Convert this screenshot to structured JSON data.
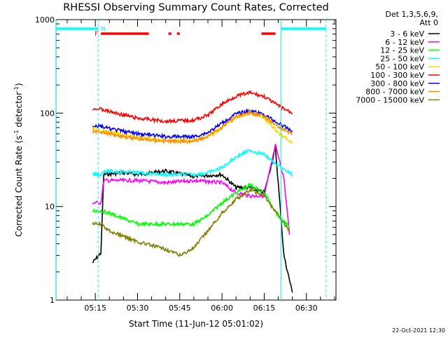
{
  "chart_data": {
    "type": "line",
    "title": "RHESSI Observing Summary Count Rates, Corrected",
    "xlabel": "Start Time (11-Jun-12 05:01:02)",
    "ylabel_main": "Corrected Count Rate (s",
    "ylabel_sup1": "-1",
    "ylabel_mid": " detector",
    "ylabel_sup2": "-1",
    "ylabel_end": ")",
    "y_scale": "log",
    "ylim": [
      1,
      1000
    ],
    "xlim": [
      "05:01:02",
      "06:40:30"
    ],
    "x_ticks": [
      "05:15",
      "05:30",
      "05:45",
      "06:00",
      "06:15",
      "06:30"
    ],
    "y_ticks": [
      "1",
      "10",
      "100",
      "1000"
    ],
    "grid": false,
    "legend_header": [
      "Det 1,3,5,6,9,",
      "Att 0"
    ],
    "legend_placement": "right",
    "series": [
      {
        "name": "3 - 6 keV",
        "color": "#000000",
        "x": [
          "05:14",
          "05:17",
          "05:18",
          "05:25",
          "05:30",
          "05:40",
          "05:50",
          "06:00",
          "06:05",
          "06:10",
          "06:15",
          "06:19",
          "06:22",
          "06:25"
        ],
        "values": [
          2.5,
          3.2,
          22,
          23,
          22,
          24,
          21,
          22,
          16,
          16,
          14,
          42,
          3,
          1.2
        ]
      },
      {
        "name": "6 - 12 keV",
        "color": "#ff00ff",
        "x": [
          "05:14",
          "05:17",
          "05:18",
          "05:30",
          "05:40",
          "05:50",
          "06:00",
          "06:05",
          "06:10",
          "06:15",
          "06:19",
          "06:22",
          "06:24"
        ],
        "values": [
          11,
          11,
          19,
          19,
          18,
          19,
          18,
          14,
          13,
          13,
          45,
          20,
          5
        ]
      },
      {
        "name": "12 - 25 keV",
        "color": "#00ff00",
        "x": [
          "05:14",
          "05:17",
          "05:20",
          "05:30",
          "05:40",
          "05:50",
          "05:55",
          "06:00",
          "06:05",
          "06:10",
          "06:15",
          "06:20",
          "06:24"
        ],
        "values": [
          9,
          9,
          8.5,
          6.5,
          6.5,
          6.5,
          8,
          11,
          14,
          17,
          14,
          8,
          6
        ]
      },
      {
        "name": "25 - 50 keV",
        "color": "#00ffff",
        "x": [
          "05:14",
          "05:17",
          "05:18",
          "05:30",
          "05:40",
          "05:50",
          "05:55",
          "06:00",
          "06:05",
          "06:10",
          "06:15",
          "06:20",
          "06:25"
        ],
        "values": [
          22,
          22,
          24,
          23,
          22,
          22,
          23,
          26,
          34,
          40,
          36,
          27,
          22
        ]
      },
      {
        "name": "50 - 100 keV",
        "color": "#ffd700",
        "x": [
          "05:14",
          "05:17",
          "05:20",
          "05:30",
          "05:40",
          "05:50",
          "05:55",
          "06:00",
          "06:05",
          "06:10",
          "06:15",
          "06:20",
          "06:25"
        ],
        "values": [
          68,
          66,
          62,
          55,
          51,
          51,
          56,
          70,
          90,
          100,
          88,
          62,
          48
        ]
      },
      {
        "name": "100 - 300 keV",
        "color": "#ff0000",
        "x": [
          "05:14",
          "05:17",
          "05:20",
          "05:30",
          "05:40",
          "05:50",
          "05:55",
          "06:00",
          "06:05",
          "06:10",
          "06:15",
          "06:20",
          "06:25"
        ],
        "values": [
          112,
          110,
          104,
          88,
          82,
          84,
          95,
          125,
          152,
          165,
          150,
          120,
          100
        ]
      },
      {
        "name": "300 - 800 keV",
        "color": "#0000ff",
        "x": [
          "05:14",
          "05:17",
          "05:20",
          "05:30",
          "05:40",
          "05:50",
          "05:55",
          "06:00",
          "06:05",
          "06:10",
          "06:15",
          "06:20",
          "06:25"
        ],
        "values": [
          74,
          72,
          68,
          60,
          56,
          56,
          62,
          78,
          98,
          106,
          96,
          78,
          64
        ]
      },
      {
        "name": "800 - 7000 keV",
        "color": "#ff8c00",
        "x": [
          "05:14",
          "05:17",
          "05:20",
          "05:30",
          "05:40",
          "05:50",
          "05:55",
          "06:00",
          "06:05",
          "06:10",
          "06:15",
          "06:20",
          "06:25"
        ],
        "values": [
          64,
          63,
          60,
          53,
          50,
          50,
          56,
          71,
          92,
          102,
          92,
          72,
          60
        ]
      },
      {
        "name": "7000 - 15000 keV",
        "color": "#808000",
        "x": [
          "05:14",
          "05:17",
          "05:20",
          "05:30",
          "05:40",
          "05:45",
          "05:50",
          "05:55",
          "06:00",
          "06:05",
          "06:10",
          "06:15",
          "06:20",
          "06:24"
        ],
        "values": [
          6.5,
          6.5,
          5.5,
          4.2,
          3.5,
          3.0,
          3.6,
          5.5,
          8.5,
          12,
          15,
          13,
          8,
          5.5
        ]
      }
    ],
    "attenuator_bars": {
      "label": "F",
      "color": "#ff0000",
      "segments": [
        [
          "05:17",
          "05:34"
        ],
        [
          "05:41",
          "05:42"
        ],
        [
          "05:44",
          "05:45"
        ],
        [
          "06:14",
          "06:19"
        ]
      ]
    },
    "night_bars": {
      "label": "N",
      "color": "#00ffff",
      "segments": [
        [
          "05:01",
          "05:16"
        ],
        [
          "06:21",
          "06:37"
        ]
      ]
    },
    "night_lines": {
      "color": "#00ffff",
      "solid": [
        "05:01",
        "06:21"
      ],
      "dashed": [
        "05:16",
        "06:37"
      ]
    }
  },
  "footer": {
    "date_stamp": "22-Oct-2021 12:30"
  }
}
